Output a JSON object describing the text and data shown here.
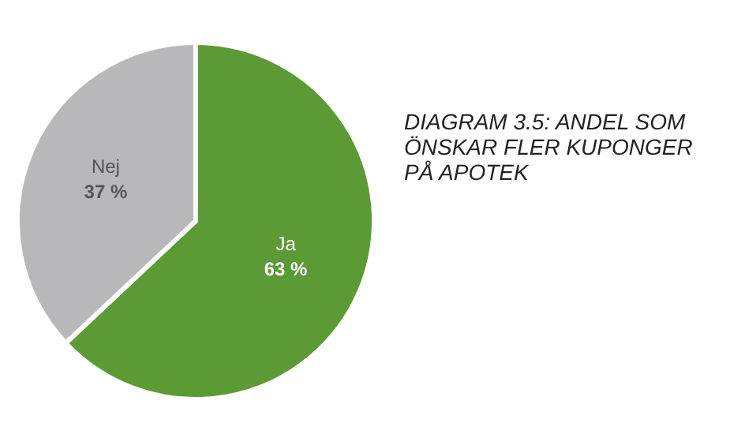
{
  "chart_data": {
    "type": "pie",
    "title": "DIAGRAM 3.5: ANDEL SOM ÖNSKAR FLER KUPONGER PÅ APOTEK",
    "categories": [
      "Ja",
      "Nej"
    ],
    "values": [
      63,
      37
    ],
    "colors": [
      "#5b9a35",
      "#b8b8ba"
    ],
    "value_labels": [
      "63 %",
      "37 %"
    ]
  }
}
